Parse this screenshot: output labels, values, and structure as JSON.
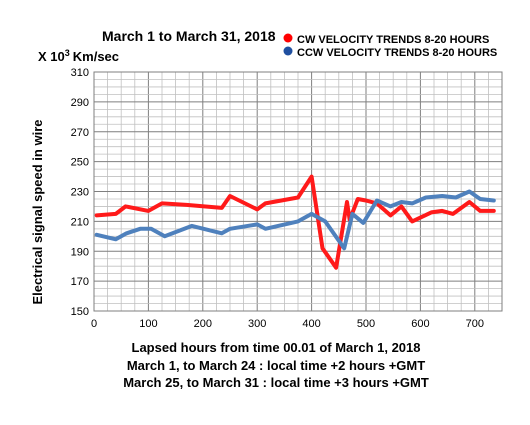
{
  "chart_data": {
    "type": "line",
    "title": "March 1 to March 31, 2018",
    "y_unit_prefix": "X 10",
    "y_unit_exponent": "3",
    "y_unit_suffix": "Km/sec",
    "ylabel": "Electrical signal speed in wire",
    "xlabel": "Lapsed hours from time 00.01 of  March 1, 2018",
    "notes": [
      "March  1,  to March 24 : local time +2 hours +GMT",
      "March 25, to March 31 : local time +3 hours +GMT"
    ],
    "xlim": [
      0,
      750
    ],
    "ylim": [
      150,
      310
    ],
    "x_ticks": [
      0,
      100,
      200,
      300,
      400,
      500,
      600,
      700
    ],
    "y_ticks": [
      150,
      170,
      190,
      210,
      230,
      250,
      270,
      290,
      310
    ],
    "x_minor_step": 25,
    "y_minor_step": 5,
    "grid": true,
    "legend_position": "top-right",
    "series": [
      {
        "name": "CW VELOCITY TRENDS 8-20 HOURS",
        "color": "#ff1a1a",
        "marker_color": "#ff0000",
        "x": [
          5,
          40,
          58,
          100,
          125,
          170,
          235,
          250,
          300,
          315,
          375,
          400,
          420,
          445,
          465,
          470,
          485,
          500,
          520,
          545,
          565,
          585,
          620,
          640,
          660,
          690,
          710,
          735
        ],
        "y": [
          214,
          215,
          220,
          217,
          222,
          221,
          219,
          227,
          218,
          222,
          226,
          240,
          192,
          179,
          223,
          211,
          225,
          224,
          222,
          214,
          220,
          210,
          216,
          217,
          215,
          223,
          217,
          217
        ]
      },
      {
        "name": "CCW VELOCITY TRENDS 8-20 HOURS",
        "color": "#4f81bd",
        "marker_color": "#1f4fa0",
        "x": [
          5,
          40,
          60,
          85,
          105,
          130,
          180,
          235,
          250,
          300,
          315,
          375,
          400,
          425,
          460,
          475,
          495,
          520,
          545,
          565,
          585,
          610,
          640,
          665,
          690,
          710,
          735
        ],
        "y": [
          201,
          198,
          202,
          205,
          205,
          200,
          207,
          202,
          205,
          208,
          205,
          210,
          215,
          210,
          192,
          215,
          209,
          224,
          220,
          223,
          222,
          226,
          227,
          226,
          230,
          225,
          224
        ]
      }
    ]
  }
}
